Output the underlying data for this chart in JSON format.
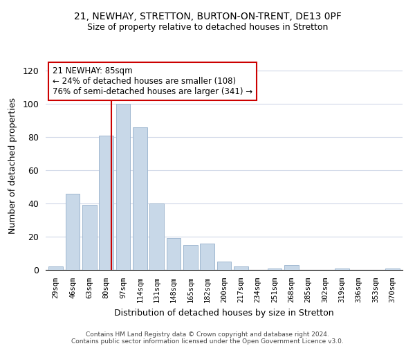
{
  "title1": "21, NEWHAY, STRETTON, BURTON-ON-TRENT, DE13 0PF",
  "title2": "Size of property relative to detached houses in Stretton",
  "xlabel": "Distribution of detached houses by size in Stretton",
  "ylabel": "Number of detached properties",
  "categories": [
    "29sqm",
    "46sqm",
    "63sqm",
    "80sqm",
    "97sqm",
    "114sqm",
    "131sqm",
    "148sqm",
    "165sqm",
    "182sqm",
    "200sqm",
    "217sqm",
    "234sqm",
    "251sqm",
    "268sqm",
    "285sqm",
    "302sqm",
    "319sqm",
    "336sqm",
    "353sqm",
    "370sqm"
  ],
  "values": [
    2,
    46,
    39,
    81,
    100,
    86,
    40,
    19,
    15,
    16,
    5,
    2,
    0,
    1,
    3,
    0,
    0,
    1,
    0,
    0,
    1
  ],
  "bar_color": "#c8d8e8",
  "bar_edge_color": "#a0b8d0",
  "annotation_title": "21 NEWHAY: 85sqm",
  "annotation_line1": "← 24% of detached houses are smaller (108)",
  "annotation_line2": "76% of semi-detached houses are larger (341) →",
  "annotation_box_color": "#ffffff",
  "annotation_box_edge": "#cc0000",
  "redline_color": "#cc0000",
  "ylim": [
    0,
    125
  ],
  "yticks": [
    0,
    20,
    40,
    60,
    80,
    100,
    120
  ],
  "footer1": "Contains HM Land Registry data © Crown copyright and database right 2024.",
  "footer2": "Contains public sector information licensed under the Open Government Licence v3.0."
}
